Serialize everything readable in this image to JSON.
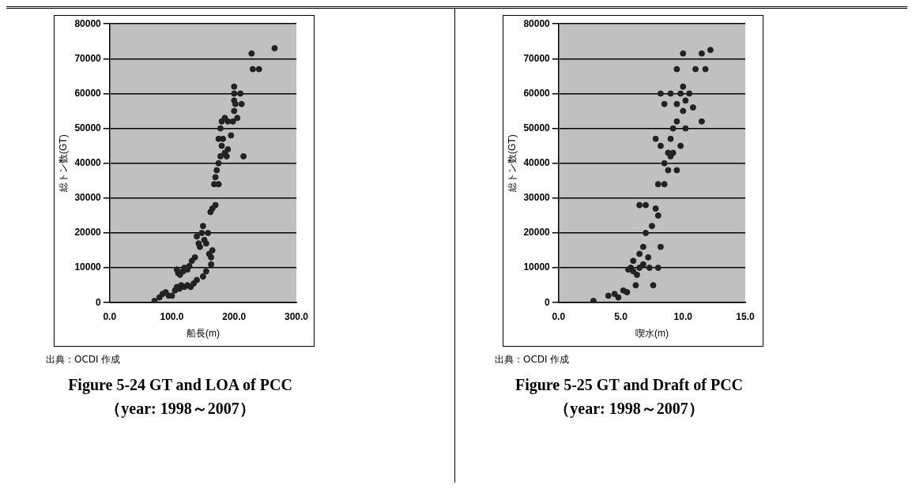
{
  "chart_data": [
    {
      "type": "scatter",
      "title": "Figure 5-24 GT and LOA of PCC",
      "subtitle": "（year: 1998～2007）",
      "xlabel": "船長(m)",
      "ylabel": "総トン数(GT)",
      "annotations": [
        "出典：OCDI 作成"
      ],
      "marker": "circle",
      "grid": "y",
      "xlim": [
        0,
        300
      ],
      "xticks": [
        {
          "value": 0,
          "label": "0.0"
        },
        {
          "value": 100,
          "label": "100.0"
        },
        {
          "value": 200,
          "label": "200.0"
        },
        {
          "value": 300,
          "label": "300.0"
        }
      ],
      "ylim": [
        0,
        80000
      ],
      "yticks": [
        0,
        10000,
        20000,
        30000,
        40000,
        50000,
        60000,
        70000,
        80000
      ],
      "series": [
        {
          "color": "#222222",
          "x": [
            72,
            80,
            85,
            90,
            95,
            100,
            105,
            108,
            112,
            115,
            120,
            125,
            130,
            135,
            140,
            150,
            155,
            108,
            110,
            113,
            118,
            120,
            125,
            128,
            132,
            137,
            143,
            140,
            145,
            148,
            150,
            152,
            155,
            160,
            163,
            165,
            163,
            158,
            162,
            165,
            170,
            168,
            175,
            172,
            175,
            178,
            180,
            182,
            178,
            180,
            185,
            188,
            190,
            195,
            198,
            200,
            200,
            200,
            200,
            202,
            205,
            210,
            212,
            215,
            228,
            230,
            240,
            265,
            185,
            175,
            190,
            170
          ],
          "values": [
            500,
            1500,
            2500,
            3000,
            2000,
            2000,
            3500,
            4500,
            4000,
            5000,
            4500,
            5000,
            4500,
            5500,
            6500,
            7500,
            9000,
            9500,
            8500,
            8000,
            9000,
            10000,
            9500,
            10500,
            12000,
            13000,
            17000,
            19000,
            16000,
            20000,
            22000,
            18000,
            17000,
            14000,
            11000,
            15000,
            13000,
            20000,
            26000,
            27000,
            28000,
            34000,
            34000,
            38000,
            40000,
            42000,
            45000,
            47000,
            50000,
            52000,
            53000,
            42000,
            44000,
            48000,
            52000,
            55000,
            58000,
            60000,
            62000,
            57000,
            53000,
            60000,
            57000,
            42000,
            71500,
            67000,
            67000,
            73000,
            43000,
            47000,
            52000,
            36000
          ]
        }
      ]
    },
    {
      "type": "scatter",
      "title": "Figure 5-25 GT and Draft of PCC",
      "subtitle": "（year: 1998～2007）",
      "xlabel": "喫水(m)",
      "ylabel": "総トン数(GT)",
      "annotations": [
        "出典：OCDI 作成"
      ],
      "marker": "circle",
      "grid": "y",
      "xlim": [
        0,
        15
      ],
      "xticks": [
        {
          "value": 0,
          "label": "0.0"
        },
        {
          "value": 5,
          "label": "5.0"
        },
        {
          "value": 10,
          "label": "10.0"
        },
        {
          "value": 15,
          "label": "15.0"
        }
      ],
      "ylim": [
        0,
        80000
      ],
      "yticks": [
        0,
        10000,
        20000,
        30000,
        40000,
        50000,
        60000,
        70000,
        80000
      ],
      "series": [
        {
          "color": "#222222",
          "x": [
            2.8,
            4,
            4.5,
            4.8,
            5.2,
            5.5,
            5.6,
            5.8,
            6,
            6,
            6.2,
            6.3,
            6.5,
            6.5,
            6.8,
            7,
            7,
            6.5,
            6.8,
            7.2,
            7.3,
            7.5,
            7.8,
            8,
            8.2,
            7.6,
            8,
            8,
            8.5,
            8.2,
            8.5,
            8.8,
            9,
            9,
            9.2,
            9.5,
            9.5,
            9.8,
            10,
            10,
            10.5,
            11,
            11.5,
            12.2,
            11.8,
            11.5,
            10.8,
            10.2,
            9.5,
            8.5,
            8.2,
            9.2,
            9.8,
            10,
            9,
            7.8,
            8.8,
            9.5,
            10.2
          ],
          "values": [
            500,
            2000,
            2500,
            1500,
            3500,
            3000,
            9500,
            10000,
            9000,
            12000,
            5000,
            8000,
            10000,
            14000,
            16000,
            20000,
            28000,
            28000,
            11000,
            13000,
            10000,
            22000,
            27000,
            25000,
            16000,
            5000,
            10000,
            34000,
            34000,
            45000,
            40000,
            38000,
            42000,
            47000,
            50000,
            52000,
            57000,
            60000,
            62000,
            71500,
            60000,
            67000,
            71500,
            72500,
            67000,
            52000,
            56000,
            50000,
            67000,
            57000,
            60000,
            43000,
            45000,
            55000,
            60000,
            47000,
            43000,
            38000,
            58000
          ]
        }
      ]
    }
  ]
}
